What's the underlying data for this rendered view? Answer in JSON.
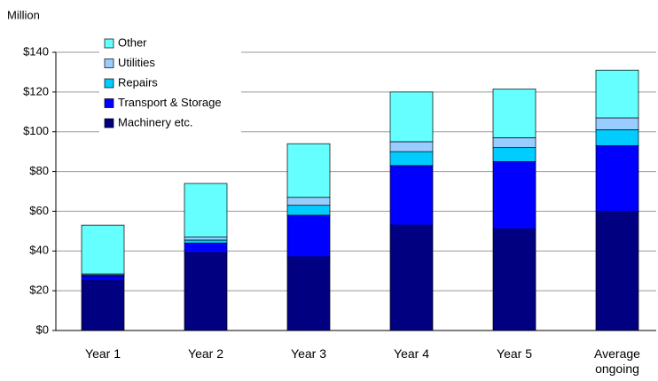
{
  "chart_data": {
    "type": "stacked-bar",
    "ylabel": "Million",
    "categories": [
      "Year 1",
      "Year 2",
      "Year 3",
      "Year 4",
      "Year 5",
      "Average ongoing"
    ],
    "series": [
      {
        "name": "Machinery etc.",
        "color": "#000080",
        "values": [
          25,
          39,
          37,
          53,
          51,
          60
        ]
      },
      {
        "name": "Transport & Storage",
        "color": "#0000ff",
        "values": [
          2.5,
          5,
          21,
          30,
          34,
          33
        ]
      },
      {
        "name": "Repairs",
        "color": "#00ccff",
        "values": [
          0.5,
          1.5,
          5,
          7,
          7,
          8
        ]
      },
      {
        "name": "Utilities",
        "color": "#99ccff",
        "values": [
          0.5,
          1.5,
          4,
          5,
          5,
          6
        ]
      },
      {
        "name": "Other",
        "color": "#66ffff",
        "values": [
          24.5,
          27,
          27,
          25,
          24.5,
          24
        ]
      }
    ],
    "ylim": [
      0,
      140
    ],
    "yticks": [
      {
        "value": 0,
        "label": "$0"
      },
      {
        "value": 20,
        "label": "$20"
      },
      {
        "value": 40,
        "label": "$40"
      },
      {
        "value": 60,
        "label": "$60"
      },
      {
        "value": 80,
        "label": "$80"
      },
      {
        "value": 100,
        "label": "$100"
      },
      {
        "value": 120,
        "label": "$120"
      },
      {
        "value": 140,
        "label": "$140"
      }
    ],
    "grid": true,
    "legend": "top-left"
  }
}
